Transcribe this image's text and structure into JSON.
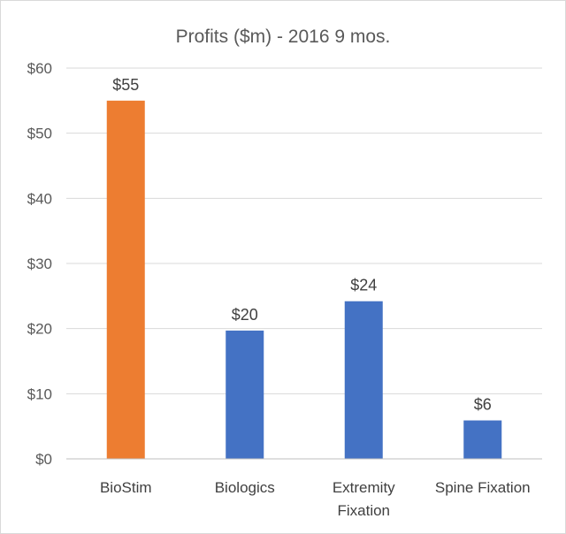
{
  "chart_data": {
    "type": "bar",
    "title": "Profits ($m) - 2016 9 mos.",
    "xlabel": "",
    "ylabel": "",
    "categories": [
      "BioStim",
      "Biologics",
      "Extremity Fixation",
      "Spine Fixation"
    ],
    "category_lines": [
      [
        "BioStim"
      ],
      [
        "Biologics"
      ],
      [
        "Extremity",
        "Fixation"
      ],
      [
        "Spine Fixation"
      ]
    ],
    "values": [
      55,
      19.7,
      24.2,
      5.9
    ],
    "data_labels": [
      "$55",
      "$20",
      "$24",
      "$6"
    ],
    "bar_colors": [
      "#ED7D31",
      "#4472C4",
      "#4472C4",
      "#4472C4"
    ],
    "ylim": [
      0,
      60
    ],
    "yticks": [
      0,
      10,
      20,
      30,
      40,
      50,
      60
    ],
    "ytick_labels": [
      "$0",
      "$10",
      "$20",
      "$30",
      "$40",
      "$50",
      "$60"
    ],
    "grid": true,
    "legend": "none"
  }
}
